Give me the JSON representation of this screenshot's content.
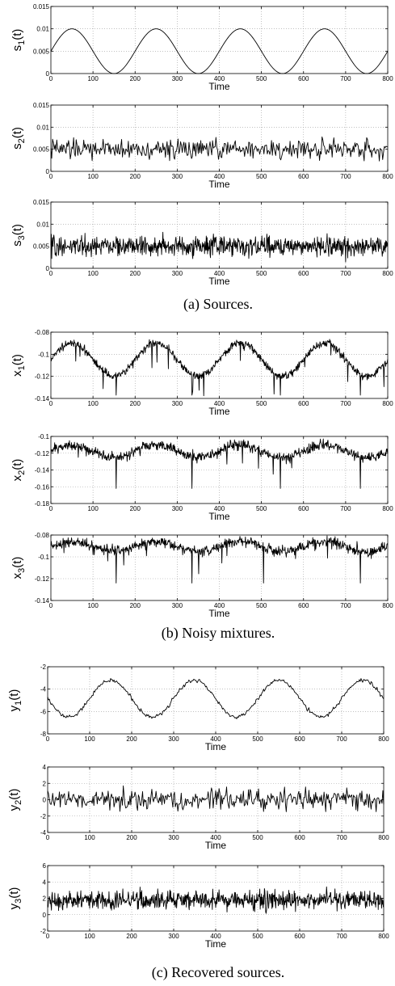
{
  "chart_data": [
    {
      "type": "line",
      "panel": "a1",
      "ylabel": "s1(t)",
      "xlabel": "Time",
      "xlim": [
        0,
        800
      ],
      "ylim": [
        0,
        0.015
      ],
      "xticks": [
        "0",
        "100",
        "200",
        "300",
        "400",
        "500",
        "600",
        "700",
        "800"
      ],
      "yticks": [
        "0",
        "0.005",
        "0.01",
        "0.015"
      ],
      "grid": true,
      "series": [
        {
          "shape": "sinusoid",
          "period": 200,
          "min": 0,
          "max": 0.01,
          "peaks_at": [
            50,
            250,
            450,
            650
          ],
          "troughs_at": [
            150,
            350,
            550,
            750
          ],
          "start": 0.005,
          "end": 0.005
        }
      ]
    },
    {
      "type": "line",
      "panel": "a2",
      "ylabel": "s2(t)",
      "xlabel": "Time",
      "xlim": [
        0,
        800
      ],
      "ylim": [
        0,
        0.015
      ],
      "xticks": [
        "0",
        "100",
        "200",
        "300",
        "400",
        "500",
        "600",
        "700",
        "800"
      ],
      "yticks": [
        "0",
        "0.005",
        "0.01",
        "0.015"
      ],
      "grid": true,
      "series": [
        {
          "shape": "noise",
          "mean": 0.005,
          "min": 0.0005,
          "max": 0.0098,
          "points": 400
        }
      ]
    },
    {
      "type": "line",
      "panel": "a3",
      "ylabel": "s3(t)",
      "xlabel": "Time",
      "xlim": [
        0,
        800
      ],
      "ylim": [
        0,
        0.015
      ],
      "xticks": [
        "0",
        "100",
        "200",
        "300",
        "400",
        "500",
        "600",
        "700",
        "800"
      ],
      "yticks": [
        "0",
        "0.005",
        "0.01",
        "0.015"
      ],
      "grid": true,
      "series": [
        {
          "shape": "noise",
          "mean": 0.005,
          "min": 0.0003,
          "max": 0.0098,
          "points": 800
        }
      ]
    },
    {
      "type": "line",
      "panel": "b1",
      "ylabel": "x1(t)",
      "xlabel": "Time",
      "xlim": [
        0,
        800
      ],
      "ylim": [
        -0.14,
        -0.08
      ],
      "xticks": [
        "0",
        "100",
        "200",
        "300",
        "400",
        "500",
        "600",
        "700",
        "800"
      ],
      "yticks": [
        "-0.14",
        "-0.12",
        "-0.1",
        "-0.08"
      ],
      "grid": true,
      "series": [
        {
          "shape": "mixture",
          "baseline_max": -0.09,
          "baseline_min": -0.12,
          "period": 200,
          "peaks_at": [
            50,
            250,
            450,
            650
          ],
          "dips_at": [
            155,
            335,
            545,
            735
          ],
          "min": -0.137,
          "noise": 0.003
        }
      ]
    },
    {
      "type": "line",
      "panel": "b2",
      "ylabel": "x2(t)",
      "xlabel": "Time",
      "xlim": [
        0,
        800
      ],
      "ylim": [
        -0.18,
        -0.1
      ],
      "xticks": [
        "0",
        "100",
        "200",
        "300",
        "400",
        "500",
        "600",
        "700",
        "800"
      ],
      "yticks": [
        "-0.18",
        "-0.16",
        "-0.14",
        "-0.12",
        "-0.1"
      ],
      "grid": true,
      "series": [
        {
          "shape": "mixture",
          "baseline_max": -0.11,
          "baseline_min": -0.125,
          "period": 200,
          "peaks_at": [
            50,
            250,
            450,
            650
          ],
          "dips_at": [
            155,
            335,
            545,
            735
          ],
          "min": -0.162,
          "noise": 0.005
        }
      ]
    },
    {
      "type": "line",
      "panel": "b3",
      "ylabel": "x3(t)",
      "xlabel": "Time",
      "xlim": [
        0,
        800
      ],
      "ylim": [
        -0.14,
        -0.08
      ],
      "xticks": [
        "0",
        "100",
        "200",
        "300",
        "400",
        "500",
        "600",
        "700",
        "800"
      ],
      "yticks": [
        "-0.14",
        "-0.12",
        "-0.1",
        "-0.08"
      ],
      "grid": true,
      "series": [
        {
          "shape": "mixture",
          "baseline_max": -0.086,
          "baseline_min": -0.095,
          "period": 200,
          "peaks_at": [
            50,
            250,
            450,
            650
          ],
          "dips_at": [
            155,
            335,
            505,
            735
          ],
          "min": -0.124,
          "noise": 0.004
        }
      ]
    },
    {
      "type": "line",
      "panel": "c1",
      "ylabel": "y1(t)",
      "xlabel": "Time",
      "xlim": [
        0,
        800
      ],
      "ylim": [
        -8,
        -2
      ],
      "xticks": [
        "0",
        "100",
        "200",
        "300",
        "400",
        "500",
        "600",
        "700",
        "800"
      ],
      "yticks": [
        "-8",
        "-6",
        "-4",
        "-2"
      ],
      "grid": true,
      "series": [
        {
          "shape": "sinusoid",
          "period": 200,
          "min": -6.5,
          "max": -3.2,
          "peaks_at": [
            150,
            350,
            550,
            750
          ],
          "troughs_at": [
            50,
            250,
            450,
            650
          ],
          "start": -5.6,
          "end": -5.2,
          "noise": 0.15
        }
      ]
    },
    {
      "type": "line",
      "panel": "c2",
      "ylabel": "y2(t)",
      "xlabel": "Time",
      "xlim": [
        0,
        800
      ],
      "ylim": [
        -4,
        4
      ],
      "xticks": [
        "0",
        "100",
        "200",
        "300",
        "400",
        "500",
        "600",
        "700",
        "800"
      ],
      "yticks": [
        "-4",
        "-2",
        "0",
        "2",
        "4"
      ],
      "grid": true,
      "series": [
        {
          "shape": "noise",
          "mean": 0,
          "min": -3,
          "max": 2.2,
          "points": 400
        }
      ]
    },
    {
      "type": "line",
      "panel": "c3",
      "ylabel": "y3(t)",
      "xlabel": "Time",
      "xlim": [
        0,
        800
      ],
      "ylim": [
        -2,
        6
      ],
      "xticks": [
        "0",
        "100",
        "200",
        "300",
        "400",
        "500",
        "600",
        "700",
        "800"
      ],
      "yticks": [
        "-2",
        "0",
        "2",
        "4",
        "6"
      ],
      "grid": true,
      "series": [
        {
          "shape": "noise",
          "mean": 1.8,
          "min": -0.5,
          "max": 4.3,
          "points": 800
        }
      ]
    }
  ],
  "captions": {
    "a": "(a) Sources.",
    "b": "(b) Noisy mixtures.",
    "c": "(c) Recovered sources."
  }
}
